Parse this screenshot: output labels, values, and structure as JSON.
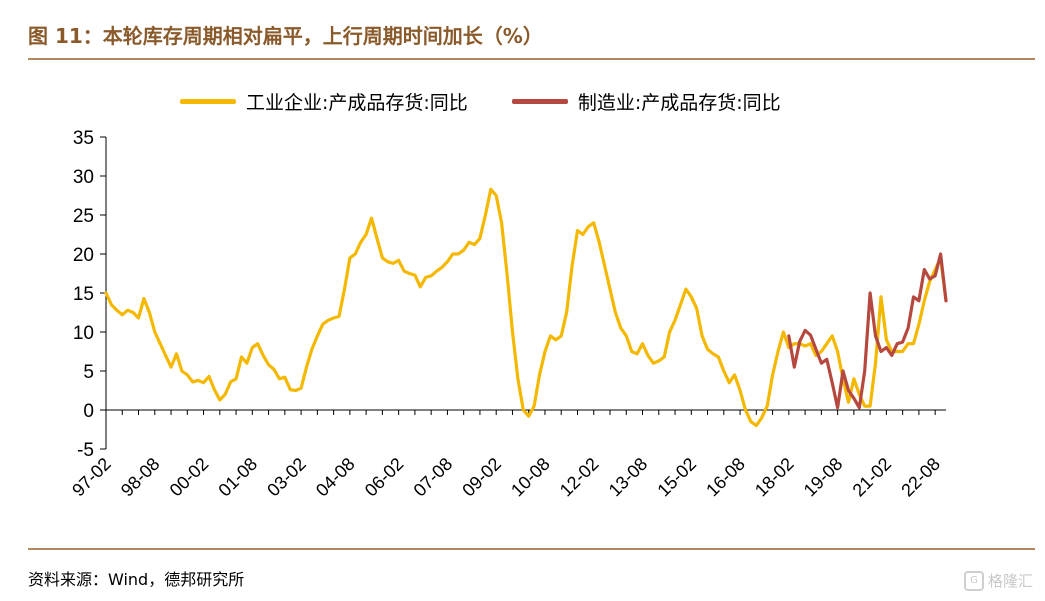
{
  "title": "图 11：本轮库存周期相对扁平，上行周期时间加长（%）",
  "source": "资料来源：Wind，德邦研究所",
  "watermark": "格隆汇",
  "colors": {
    "series1": "#F5B800",
    "series2": "#B5483F",
    "title": "#8B5A2B",
    "rule": "#B08A5E"
  },
  "chart_data": {
    "type": "line",
    "ylim": [
      -5,
      35
    ],
    "yticks": [
      35,
      30,
      25,
      20,
      15,
      10,
      5,
      0,
      -5
    ],
    "grid": false,
    "legend_position": "top",
    "x_tick_labels": [
      "97-02",
      "98-08",
      "00-02",
      "01-08",
      "03-02",
      "04-08",
      "06-02",
      "07-08",
      "09-02",
      "10-08",
      "12-02",
      "13-08",
      "15-02",
      "16-08",
      "18-02",
      "19-08",
      "21-02",
      "22-08"
    ],
    "series": [
      {
        "name": "工业企业:产成品存货:同比",
        "color": "#F5B800",
        "points": [
          [
            "1997-02",
            15.0
          ],
          [
            "1997-04",
            13.5
          ],
          [
            "1997-06",
            12.8
          ],
          [
            "1997-08",
            12.2
          ],
          [
            "1997-10",
            12.8
          ],
          [
            "1997-12",
            12.5
          ],
          [
            "1998-02",
            11.8
          ],
          [
            "1998-04",
            14.3
          ],
          [
            "1998-06",
            12.5
          ],
          [
            "1998-08",
            10.0
          ],
          [
            "1998-10",
            8.5
          ],
          [
            "1998-12",
            7.0
          ],
          [
            "1999-02",
            5.5
          ],
          [
            "1999-04",
            7.2
          ],
          [
            "1999-06",
            5.0
          ],
          [
            "1999-08",
            4.5
          ],
          [
            "1999-10",
            3.6
          ],
          [
            "1999-12",
            3.8
          ],
          [
            "2000-02",
            3.5
          ],
          [
            "2000-04",
            4.3
          ],
          [
            "2000-06",
            2.6
          ],
          [
            "2000-08",
            1.3
          ],
          [
            "2000-10",
            2.0
          ],
          [
            "2000-12",
            3.6
          ],
          [
            "2001-02",
            4.0
          ],
          [
            "2001-04",
            6.8
          ],
          [
            "2001-06",
            6.0
          ],
          [
            "2001-08",
            8.0
          ],
          [
            "2001-10",
            8.5
          ],
          [
            "2001-12",
            7.0
          ],
          [
            "2002-02",
            5.8
          ],
          [
            "2002-04",
            5.2
          ],
          [
            "2002-06",
            4.0
          ],
          [
            "2002-08",
            4.2
          ],
          [
            "2002-10",
            2.6
          ],
          [
            "2002-12",
            2.5
          ],
          [
            "2003-02",
            2.8
          ],
          [
            "2003-04",
            5.5
          ],
          [
            "2003-06",
            7.8
          ],
          [
            "2003-08",
            9.5
          ],
          [
            "2003-10",
            11.0
          ],
          [
            "2003-12",
            11.5
          ],
          [
            "2004-02",
            11.8
          ],
          [
            "2004-04",
            12.0
          ],
          [
            "2004-06",
            15.5
          ],
          [
            "2004-08",
            19.5
          ],
          [
            "2004-10",
            20.0
          ],
          [
            "2004-12",
            21.5
          ],
          [
            "2005-02",
            22.5
          ],
          [
            "2005-04",
            24.6
          ],
          [
            "2005-06",
            22.0
          ],
          [
            "2005-08",
            19.5
          ],
          [
            "2005-10",
            19.0
          ],
          [
            "2005-12",
            18.8
          ],
          [
            "2006-02",
            19.2
          ],
          [
            "2006-04",
            17.8
          ],
          [
            "2006-06",
            17.5
          ],
          [
            "2006-08",
            17.3
          ],
          [
            "2006-10",
            15.8
          ],
          [
            "2006-12",
            17.0
          ],
          [
            "2007-02",
            17.2
          ],
          [
            "2007-04",
            17.8
          ],
          [
            "2007-06",
            18.3
          ],
          [
            "2007-08",
            19.0
          ],
          [
            "2007-10",
            20.0
          ],
          [
            "2007-12",
            20.0
          ],
          [
            "2008-02",
            20.5
          ],
          [
            "2008-04",
            21.5
          ],
          [
            "2008-06",
            21.2
          ],
          [
            "2008-08",
            22.0
          ],
          [
            "2008-10",
            25.0
          ],
          [
            "2008-12",
            28.3
          ],
          [
            "2009-02",
            27.5
          ],
          [
            "2009-04",
            24.0
          ],
          [
            "2009-06",
            17.5
          ],
          [
            "2009-08",
            10.0
          ],
          [
            "2009-10",
            4.0
          ],
          [
            "2009-12",
            0.0
          ],
          [
            "2010-02",
            -0.8
          ],
          [
            "2010-04",
            0.5
          ],
          [
            "2010-06",
            4.5
          ],
          [
            "2010-08",
            7.5
          ],
          [
            "2010-10",
            9.5
          ],
          [
            "2010-12",
            9.0
          ],
          [
            "2011-02",
            9.5
          ],
          [
            "2011-04",
            12.5
          ],
          [
            "2011-06",
            18.5
          ],
          [
            "2011-08",
            23.0
          ],
          [
            "2011-10",
            22.5
          ],
          [
            "2011-12",
            23.5
          ],
          [
            "2012-02",
            24.0
          ],
          [
            "2012-04",
            21.5
          ],
          [
            "2012-06",
            18.5
          ],
          [
            "2012-08",
            15.5
          ],
          [
            "2012-10",
            12.5
          ],
          [
            "2012-12",
            10.5
          ],
          [
            "2013-02",
            9.5
          ],
          [
            "2013-04",
            7.5
          ],
          [
            "2013-06",
            7.2
          ],
          [
            "2013-08",
            8.5
          ],
          [
            "2013-10",
            7.0
          ],
          [
            "2013-12",
            6.0
          ],
          [
            "2014-02",
            6.3
          ],
          [
            "2014-04",
            6.8
          ],
          [
            "2014-06",
            10.0
          ],
          [
            "2014-08",
            11.5
          ],
          [
            "2014-10",
            13.5
          ],
          [
            "2014-12",
            15.5
          ],
          [
            "2015-02",
            14.5
          ],
          [
            "2015-04",
            13.0
          ],
          [
            "2015-06",
            9.5
          ],
          [
            "2015-08",
            7.8
          ],
          [
            "2015-10",
            7.2
          ],
          [
            "2015-12",
            6.8
          ],
          [
            "2016-02",
            5.0
          ],
          [
            "2016-04",
            3.5
          ],
          [
            "2016-06",
            4.5
          ],
          [
            "2016-08",
            2.5
          ],
          [
            "2016-10",
            0.0
          ],
          [
            "2016-12",
            -1.5
          ],
          [
            "2017-02",
            -2.0
          ],
          [
            "2017-04",
            -1.0
          ],
          [
            "2017-06",
            0.5
          ],
          [
            "2017-08",
            4.5
          ],
          [
            "2017-10",
            7.5
          ],
          [
            "2017-12",
            10.0
          ],
          [
            "2018-02",
            8.0
          ],
          [
            "2018-04",
            8.5
          ],
          [
            "2018-06",
            8.5
          ],
          [
            "2018-08",
            8.2
          ],
          [
            "2018-10",
            8.5
          ],
          [
            "2018-12",
            7.0
          ],
          [
            "2019-02",
            7.5
          ],
          [
            "2019-04",
            8.5
          ],
          [
            "2019-06",
            9.5
          ],
          [
            "2019-08",
            7.5
          ],
          [
            "2019-10",
            4.0
          ],
          [
            "2019-12",
            1.0
          ],
          [
            "2020-02",
            4.0
          ],
          [
            "2020-04",
            2.0
          ],
          [
            "2020-06",
            0.5
          ],
          [
            "2020-08",
            0.5
          ],
          [
            "2020-10",
            6.0
          ],
          [
            "2020-12",
            14.5
          ],
          [
            "2021-02",
            9.0
          ],
          [
            "2021-04",
            7.5
          ],
          [
            "2021-06",
            7.5
          ],
          [
            "2021-08",
            7.5
          ],
          [
            "2021-10",
            8.5
          ],
          [
            "2021-12",
            8.5
          ],
          [
            "2022-02",
            11.0
          ],
          [
            "2022-04",
            14.0
          ],
          [
            "2022-06",
            16.5
          ],
          [
            "2022-08",
            18.0
          ],
          [
            "2022-10",
            19.5
          ],
          [
            "2022-12",
            14.0
          ]
        ]
      },
      {
        "name": "制造业:产成品存货:同比",
        "color": "#B5483F",
        "points": [
          [
            "2018-02",
            9.5
          ],
          [
            "2018-04",
            5.5
          ],
          [
            "2018-06",
            8.8
          ],
          [
            "2018-08",
            10.2
          ],
          [
            "2018-10",
            9.6
          ],
          [
            "2018-12",
            7.8
          ],
          [
            "2019-02",
            6.0
          ],
          [
            "2019-04",
            6.5
          ],
          [
            "2019-06",
            3.5
          ],
          [
            "2019-08",
            0.3
          ],
          [
            "2019-10",
            5.0
          ],
          [
            "2019-12",
            2.5
          ],
          [
            "2020-02",
            1.5
          ],
          [
            "2020-04",
            0.3
          ],
          [
            "2020-06",
            5.0
          ],
          [
            "2020-08",
            15.0
          ],
          [
            "2020-10",
            9.5
          ],
          [
            "2020-12",
            7.5
          ],
          [
            "2021-02",
            8.0
          ],
          [
            "2021-04",
            7.0
          ],
          [
            "2021-06",
            8.5
          ],
          [
            "2021-08",
            8.7
          ],
          [
            "2021-10",
            10.5
          ],
          [
            "2021-12",
            14.5
          ],
          [
            "2022-02",
            14.0
          ],
          [
            "2022-04",
            18.0
          ],
          [
            "2022-06",
            16.8
          ],
          [
            "2022-08",
            17.2
          ],
          [
            "2022-10",
            20.0
          ],
          [
            "2022-12",
            14.0
          ]
        ]
      }
    ]
  }
}
